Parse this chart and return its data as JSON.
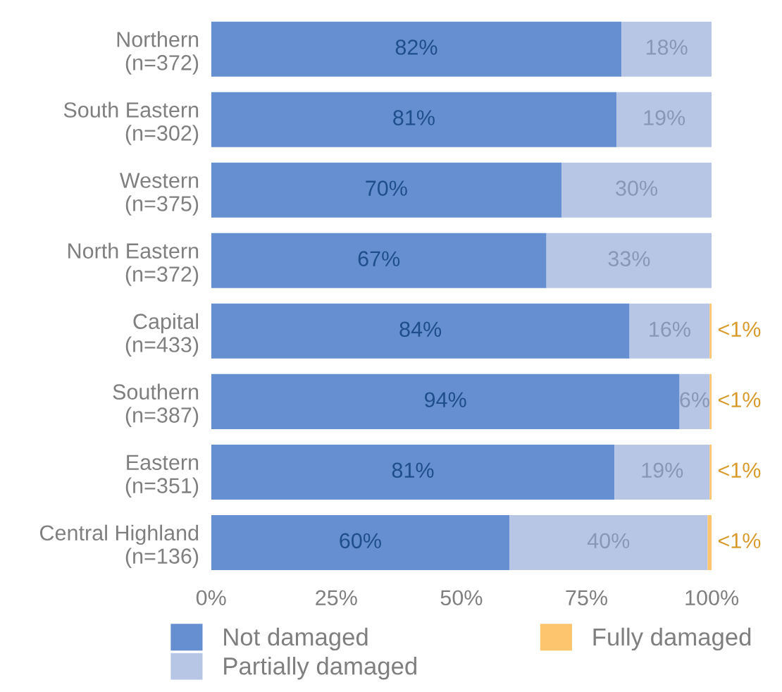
{
  "chart_data": {
    "type": "bar",
    "orientation": "horizontal",
    "stacked": true,
    "categories": [
      "Northern\n(n=372)",
      "South Eastern\n(n=302)",
      "Western\n(n=375)",
      "North Eastern\n(n=372)",
      "Capital\n(n=433)",
      "Southern\n(n=387)",
      "Eastern\n(n=351)",
      "Central Highland\n(n=136)"
    ],
    "series": [
      {
        "name": "Not damaged",
        "color": "#658fd0",
        "values": [
          82,
          81,
          70,
          67,
          83.6,
          93.6,
          80.6,
          59.6
        ],
        "value_labels": [
          "82%",
          "81%",
          "70%",
          "67%",
          "84%",
          "94%",
          "81%",
          "60%"
        ]
      },
      {
        "name": "Partially damaged",
        "color": "#b8c6e6",
        "values": [
          18,
          19,
          30,
          33,
          16,
          6,
          19,
          39.6
        ],
        "value_labels": [
          "18%",
          "19%",
          "30%",
          "33%",
          "16%",
          "6%",
          "19%",
          "40%"
        ]
      },
      {
        "name": "Fully damaged",
        "color": "#fdc56e",
        "values": [
          0,
          0,
          0,
          0,
          0.4,
          0.4,
          0.4,
          0.8
        ],
        "value_labels": [
          null,
          null,
          null,
          null,
          "<1%",
          "<1%",
          "<1%",
          "<1%"
        ]
      }
    ],
    "xlim": [
      0,
      100
    ],
    "xticks": [
      {
        "value": 0,
        "label": "0%"
      },
      {
        "value": 25,
        "label": "25%"
      },
      {
        "value": 50,
        "label": "50%"
      },
      {
        "value": 75,
        "label": "75%"
      },
      {
        "value": 100,
        "label": "100%"
      }
    ],
    "grid": false,
    "legend": "bottom"
  }
}
